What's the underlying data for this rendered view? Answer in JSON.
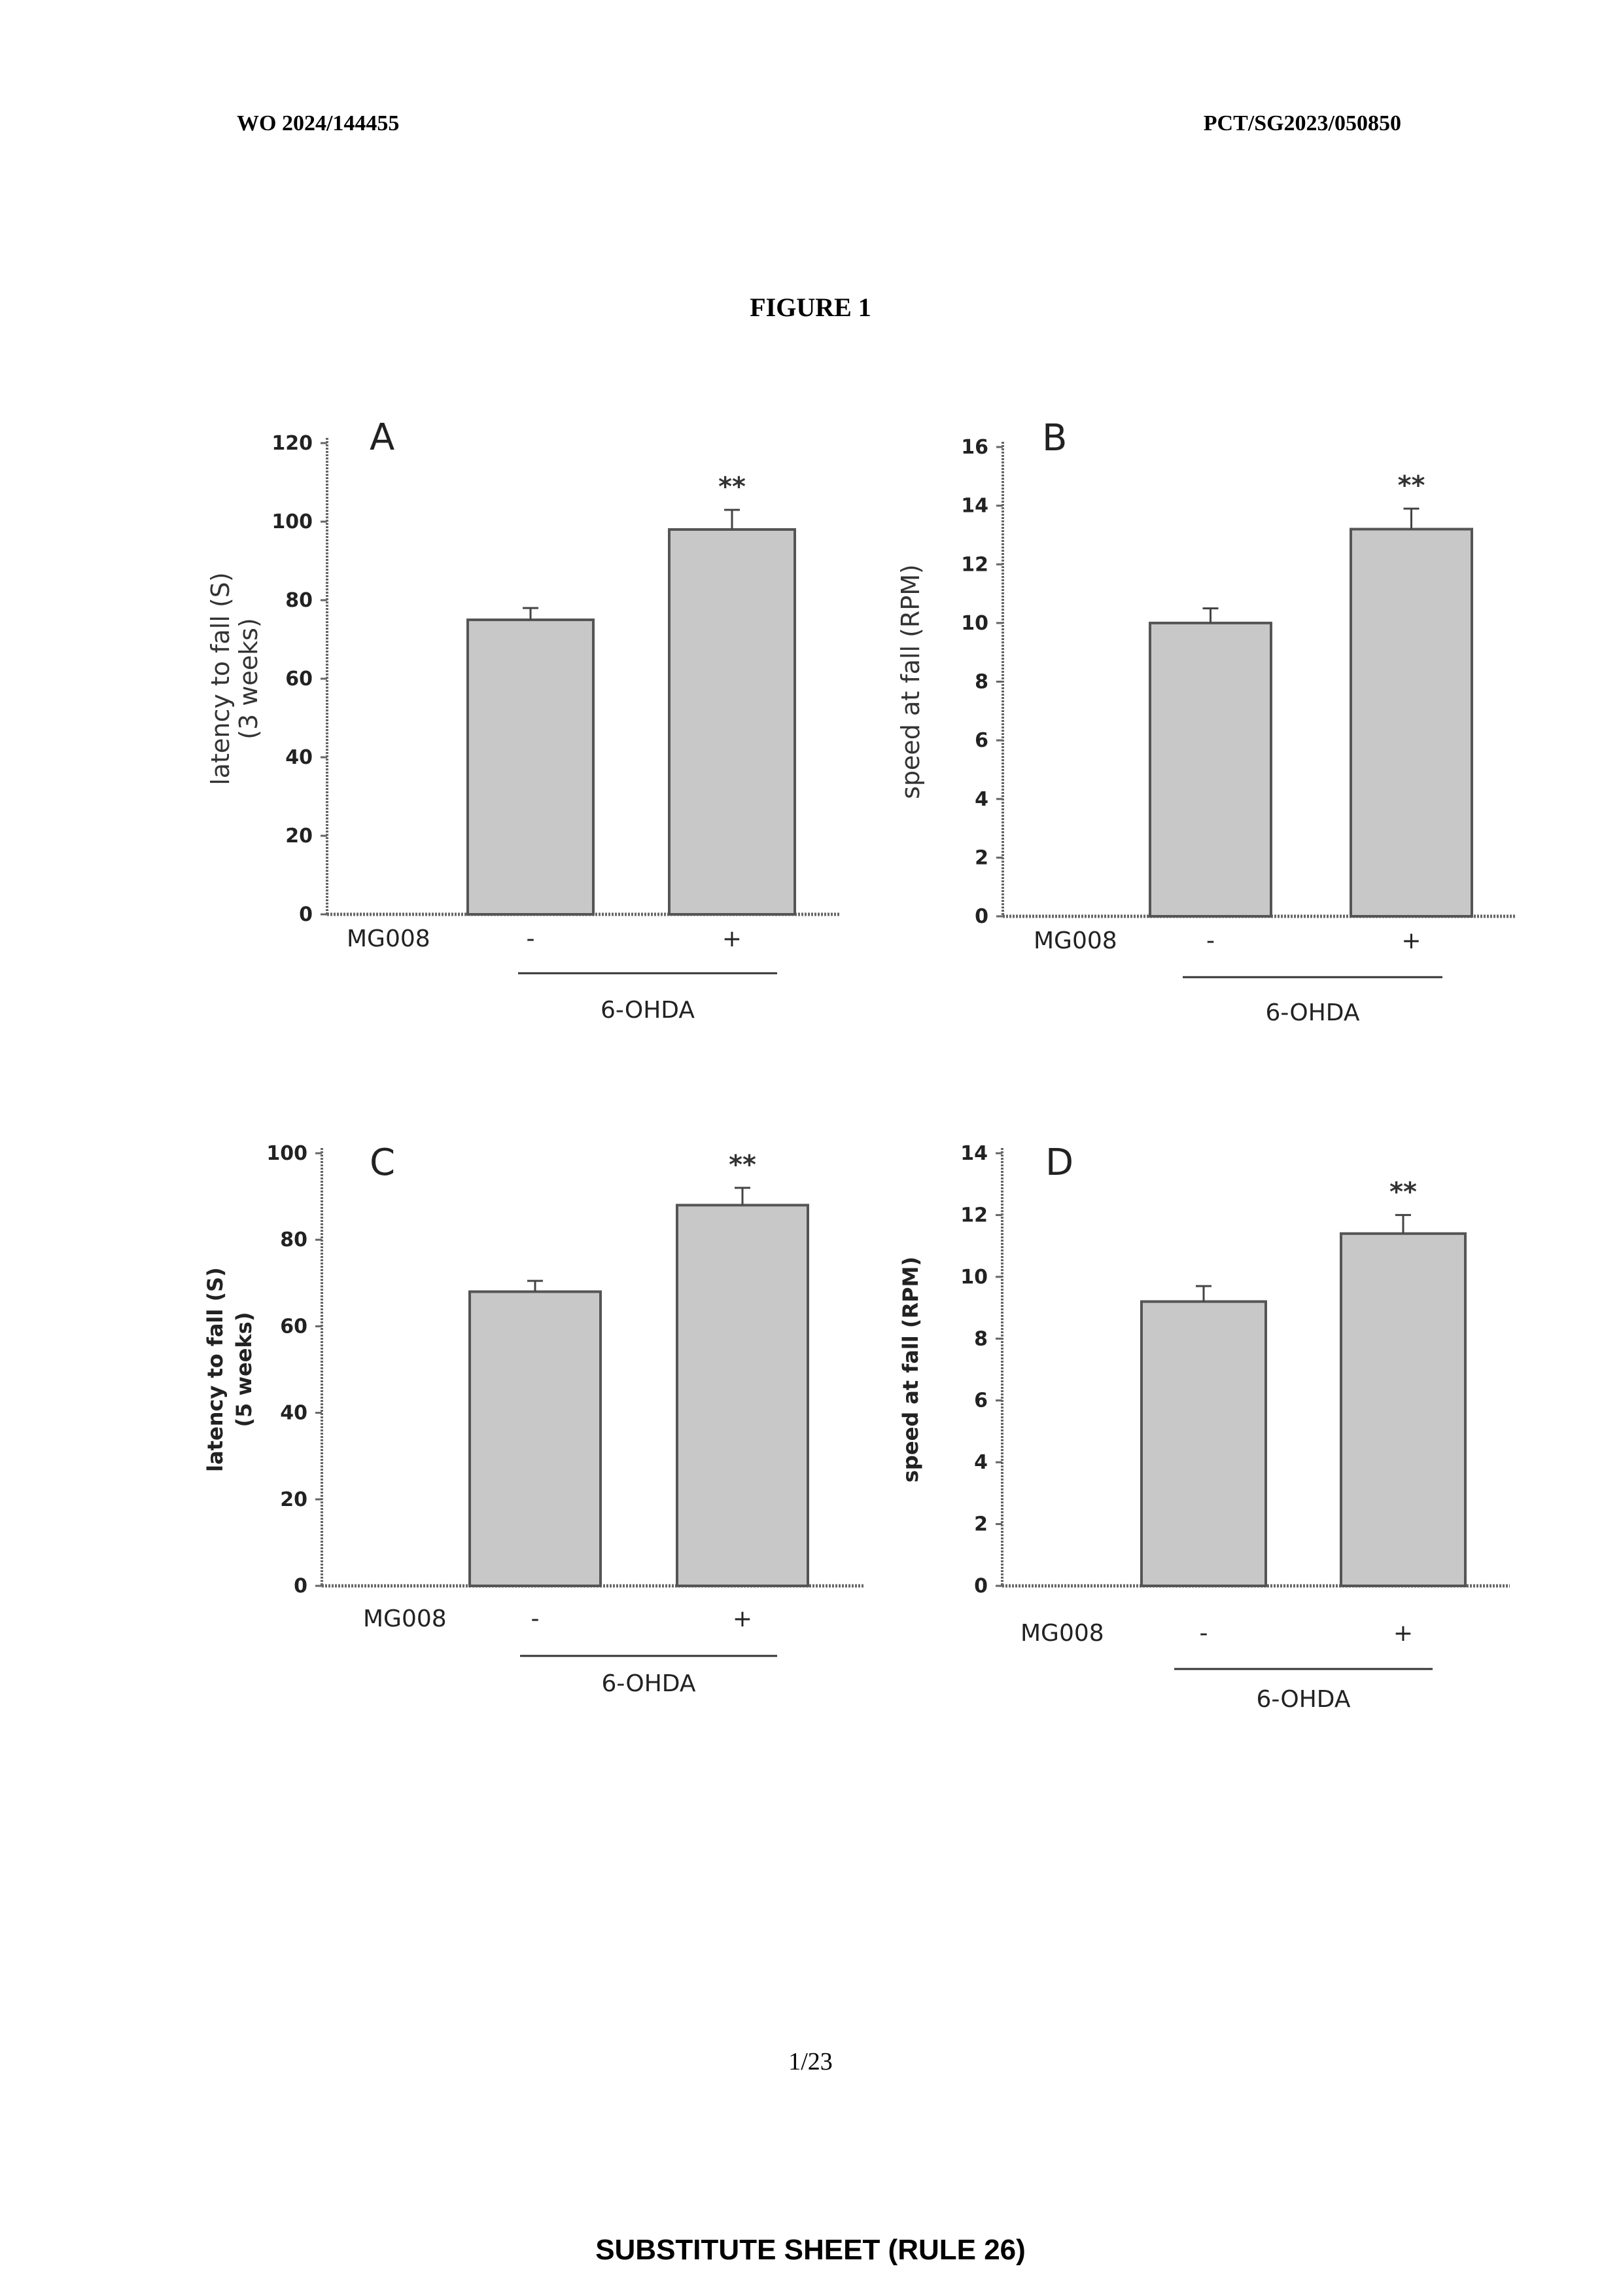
{
  "header": {
    "left": "WO 2024/144455",
    "right": "PCT/SG2023/050850"
  },
  "figure_title": "FIGURE 1",
  "page_number": "1/23",
  "footer": "SUBSTITUTE SHEET (RULE 26)",
  "colors": {
    "bar_fill": "#c8c8c8",
    "bar_stroke": "#555555",
    "axis": "#666666"
  },
  "chart_data": [
    {
      "panel": "A",
      "type": "bar",
      "ylabel": "latency to fall (S)",
      "ylabel2": "(3 weeks)",
      "ylim": [
        0,
        120
      ],
      "yticks": [
        0,
        20,
        40,
        60,
        80,
        100,
        120
      ],
      "row_label": "MG008",
      "categories": [
        "-",
        "+"
      ],
      "values": [
        75,
        98
      ],
      "errors": [
        3,
        5
      ],
      "significance": [
        "",
        "**"
      ],
      "group_label": "6-OHDA"
    },
    {
      "panel": "B",
      "type": "bar",
      "ylabel": "speed at fall (RPM)",
      "ylabel2": "",
      "ylim": [
        0,
        16
      ],
      "yticks": [
        0,
        2,
        4,
        6,
        8,
        10,
        12,
        14,
        16
      ],
      "row_label": "MG008",
      "categories": [
        "-",
        "+"
      ],
      "values": [
        10.0,
        13.2
      ],
      "errors": [
        0.5,
        0.7
      ],
      "significance": [
        "",
        "**"
      ],
      "group_label": "6-OHDA"
    },
    {
      "panel": "C",
      "type": "bar",
      "ylabel": "latency to fall (S)",
      "ylabel2": "(5 weeks)",
      "ylim": [
        0,
        100
      ],
      "yticks": [
        0,
        20,
        40,
        60,
        80,
        100
      ],
      "row_label": "MG008",
      "categories": [
        "-",
        "+"
      ],
      "values": [
        68,
        88
      ],
      "errors": [
        2.5,
        4
      ],
      "significance": [
        "",
        "**"
      ],
      "group_label": "6-OHDA"
    },
    {
      "panel": "D",
      "type": "bar",
      "ylabel": "speed at fall (RPM)",
      "ylabel2": "",
      "ylim": [
        0,
        14
      ],
      "yticks": [
        0,
        2,
        4,
        6,
        8,
        10,
        12,
        14
      ],
      "row_label": "MG008",
      "categories": [
        "-",
        "+"
      ],
      "values": [
        9.2,
        11.4
      ],
      "errors": [
        0.5,
        0.6
      ],
      "significance": [
        "",
        "**"
      ],
      "group_label": "6-OHDA"
    }
  ]
}
